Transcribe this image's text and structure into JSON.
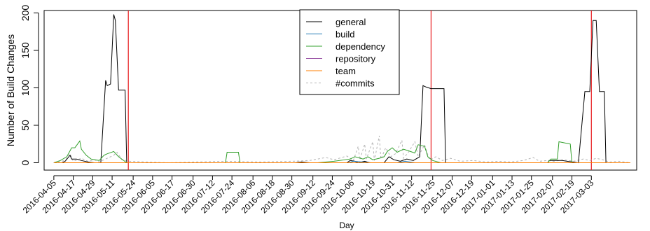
{
  "chart_data": {
    "type": "line",
    "title": "",
    "xlabel": "Day",
    "ylabel": "Number of Build Changes",
    "ylim": [
      0,
      200
    ],
    "yticks": [
      0,
      50,
      100,
      150,
      200
    ],
    "xlim": [
      "2016-03-30",
      "2017-03-31"
    ],
    "x_tick_labels": [
      "2016-04-05",
      "2016-04-17",
      "2016-04-29",
      "2016-05-11",
      "2016-05-24",
      "2016-06-05",
      "2016-06-17",
      "2016-06-30",
      "2016-07-12",
      "2016-07-24",
      "2016-08-06",
      "2016-08-18",
      "2016-08-30",
      "2016-09-12",
      "2016-09-24",
      "2016-10-06",
      "2016-10-19",
      "2016-10-31",
      "2016-11-12",
      "2016-11-25",
      "2016-12-07",
      "2016-12-19",
      "2017-01-01",
      "2017-01-13",
      "2017-01-25",
      "2017-02-07",
      "2017-02-19",
      "2017-03-03"
    ],
    "legend_position": "top-center",
    "vertical_lines": [
      "2016-05-21",
      "2016-11-24",
      "2017-03-03"
    ],
    "vertical_line_color": "#e8191c",
    "series": [
      {
        "name": "general",
        "color": "#000000",
        "dash": "solid",
        "points": [
          [
            "2016-04-05",
            0
          ],
          [
            "2016-04-10",
            0
          ],
          [
            "2016-04-12",
            2
          ],
          [
            "2016-04-15",
            10
          ],
          [
            "2016-04-16",
            5
          ],
          [
            "2016-04-19",
            5
          ],
          [
            "2016-04-22",
            3
          ],
          [
            "2016-04-26",
            1
          ],
          [
            "2016-04-30",
            0
          ],
          [
            "2016-05-04",
            0
          ],
          [
            "2016-05-07",
            110
          ],
          [
            "2016-05-08",
            103
          ],
          [
            "2016-05-10",
            105
          ],
          [
            "2016-05-12",
            198
          ],
          [
            "2016-05-13",
            190
          ],
          [
            "2016-05-15",
            97
          ],
          [
            "2016-05-19",
            97
          ],
          [
            "2016-05-20",
            0
          ],
          [
            "2016-09-01",
            0
          ],
          [
            "2016-09-05",
            1
          ],
          [
            "2016-09-10",
            0
          ],
          [
            "2016-10-03",
            0
          ],
          [
            "2016-10-05",
            3
          ],
          [
            "2016-10-08",
            2
          ],
          [
            "2016-10-10",
            0
          ],
          [
            "2016-10-14",
            2
          ],
          [
            "2016-10-17",
            0
          ],
          [
            "2016-10-26",
            0
          ],
          [
            "2016-10-29",
            8
          ],
          [
            "2016-11-01",
            4
          ],
          [
            "2016-11-05",
            2
          ],
          [
            "2016-11-09",
            5
          ],
          [
            "2016-11-13",
            3
          ],
          [
            "2016-11-17",
            8
          ],
          [
            "2016-11-19",
            103
          ],
          [
            "2016-11-21",
            101
          ],
          [
            "2016-11-24",
            99
          ],
          [
            "2016-12-02",
            99
          ],
          [
            "2016-12-03",
            0
          ],
          [
            "2017-02-04",
            0
          ],
          [
            "2017-02-05",
            3
          ],
          [
            "2017-02-10",
            3
          ],
          [
            "2017-02-13",
            3
          ],
          [
            "2017-02-16",
            2
          ],
          [
            "2017-02-23",
            0
          ],
          [
            "2017-02-27",
            95
          ],
          [
            "2017-03-02",
            95
          ],
          [
            "2017-03-04",
            190
          ],
          [
            "2017-03-06",
            190
          ],
          [
            "2017-03-08",
            95
          ],
          [
            "2017-03-11",
            95
          ],
          [
            "2017-03-12",
            0
          ],
          [
            "2017-03-27",
            0
          ]
        ]
      },
      {
        "name": "build",
        "color": "#1f78b4",
        "dash": "solid",
        "points": [
          [
            "2016-04-05",
            0
          ],
          [
            "2016-10-04",
            0
          ],
          [
            "2016-10-07",
            2
          ],
          [
            "2016-10-12",
            1
          ],
          [
            "2016-10-18",
            0
          ],
          [
            "2016-11-03",
            0
          ],
          [
            "2016-11-08",
            2
          ],
          [
            "2016-11-14",
            0
          ],
          [
            "2017-03-27",
            0
          ]
        ]
      },
      {
        "name": "dependency",
        "color": "#33a02c",
        "dash": "solid",
        "points": [
          [
            "2016-04-05",
            0
          ],
          [
            "2016-04-09",
            3
          ],
          [
            "2016-04-13",
            8
          ],
          [
            "2016-04-16",
            20
          ],
          [
            "2016-04-18",
            20
          ],
          [
            "2016-04-21",
            29
          ],
          [
            "2016-04-22",
            18
          ],
          [
            "2016-04-25",
            10
          ],
          [
            "2016-04-28",
            5
          ],
          [
            "2016-05-03",
            3
          ],
          [
            "2016-05-06",
            10
          ],
          [
            "2016-05-08",
            12
          ],
          [
            "2016-05-12",
            15
          ],
          [
            "2016-05-15",
            8
          ],
          [
            "2016-05-20",
            0
          ],
          [
            "2016-07-20",
            0
          ],
          [
            "2016-07-21",
            14
          ],
          [
            "2016-07-28",
            14
          ],
          [
            "2016-07-29",
            0
          ],
          [
            "2016-09-15",
            0
          ],
          [
            "2016-09-25",
            2
          ],
          [
            "2016-10-05",
            5
          ],
          [
            "2016-10-08",
            8
          ],
          [
            "2016-10-13",
            5
          ],
          [
            "2016-10-16",
            8
          ],
          [
            "2016-10-19",
            4
          ],
          [
            "2016-10-23",
            6
          ],
          [
            "2016-10-26",
            8
          ],
          [
            "2016-10-28",
            15
          ],
          [
            "2016-10-31",
            20
          ],
          [
            "2016-11-03",
            14
          ],
          [
            "2016-11-07",
            18
          ],
          [
            "2016-11-10",
            16
          ],
          [
            "2016-11-14",
            13
          ],
          [
            "2016-11-16",
            24
          ],
          [
            "2016-11-20",
            22
          ],
          [
            "2016-11-22",
            8
          ],
          [
            "2016-11-25",
            3
          ],
          [
            "2016-11-30",
            0
          ],
          [
            "2017-02-04",
            0
          ],
          [
            "2017-02-06",
            5
          ],
          [
            "2017-02-10",
            5
          ],
          [
            "2017-02-11",
            28
          ],
          [
            "2017-02-18",
            25
          ],
          [
            "2017-02-19",
            0
          ],
          [
            "2017-03-27",
            0
          ]
        ]
      },
      {
        "name": "repository",
        "color": "#984ea3",
        "dash": "solid",
        "points": [
          [
            "2016-04-05",
            0
          ],
          [
            "2017-03-27",
            0
          ]
        ]
      },
      {
        "name": "team",
        "color": "#ff7f00",
        "dash": "solid",
        "points": [
          [
            "2016-04-05",
            0
          ],
          [
            "2017-03-27",
            0
          ]
        ]
      },
      {
        "name": "#commits",
        "color": "#b3b3b3",
        "dash": "dashed",
        "points": [
          [
            "2016-04-05",
            0
          ],
          [
            "2016-04-12",
            3
          ],
          [
            "2016-04-15",
            12
          ],
          [
            "2016-04-17",
            2
          ],
          [
            "2016-04-22",
            6
          ],
          [
            "2016-04-26",
            2
          ],
          [
            "2016-04-30",
            4
          ],
          [
            "2016-05-03",
            1
          ],
          [
            "2016-05-08",
            6
          ],
          [
            "2016-05-12",
            10
          ],
          [
            "2016-05-14",
            14
          ],
          [
            "2016-05-17",
            4
          ],
          [
            "2016-05-22",
            2
          ],
          [
            "2016-06-01",
            1
          ],
          [
            "2016-06-15",
            0
          ],
          [
            "2016-07-01",
            1
          ],
          [
            "2016-07-20",
            2
          ],
          [
            "2016-08-10",
            1
          ],
          [
            "2016-08-30",
            2
          ],
          [
            "2016-09-10",
            3
          ],
          [
            "2016-09-20",
            7
          ],
          [
            "2016-09-25",
            4
          ],
          [
            "2016-10-03",
            9
          ],
          [
            "2016-10-07",
            3
          ],
          [
            "2016-10-10",
            22
          ],
          [
            "2016-10-11",
            4
          ],
          [
            "2016-10-14",
            25
          ],
          [
            "2016-10-15",
            5
          ],
          [
            "2016-10-19",
            28
          ],
          [
            "2016-10-20",
            3
          ],
          [
            "2016-10-23",
            36
          ],
          [
            "2016-10-24",
            5
          ],
          [
            "2016-10-27",
            20
          ],
          [
            "2016-10-30",
            8
          ],
          [
            "2016-11-02",
            12
          ],
          [
            "2016-11-06",
            30
          ],
          [
            "2016-11-07",
            6
          ],
          [
            "2016-11-10",
            14
          ],
          [
            "2016-11-14",
            28
          ],
          [
            "2016-11-16",
            8
          ],
          [
            "2016-11-20",
            24
          ],
          [
            "2016-11-23",
            4
          ],
          [
            "2016-11-27",
            8
          ],
          [
            "2016-12-01",
            3
          ],
          [
            "2016-12-06",
            6
          ],
          [
            "2016-12-12",
            2
          ],
          [
            "2016-12-20",
            3
          ],
          [
            "2016-12-28",
            1
          ],
          [
            "2017-01-05",
            2
          ],
          [
            "2017-01-12",
            1
          ],
          [
            "2017-01-20",
            3
          ],
          [
            "2017-01-26",
            7
          ],
          [
            "2017-01-30",
            2
          ],
          [
            "2017-02-04",
            3
          ],
          [
            "2017-02-08",
            2
          ],
          [
            "2017-02-14",
            4
          ],
          [
            "2017-02-20",
            2
          ],
          [
            "2017-02-26",
            5
          ],
          [
            "2017-03-02",
            3
          ],
          [
            "2017-03-06",
            6
          ],
          [
            "2017-03-10",
            4
          ],
          [
            "2017-03-14",
            1
          ],
          [
            "2017-03-20",
            2
          ],
          [
            "2017-03-27",
            0
          ]
        ]
      }
    ]
  }
}
